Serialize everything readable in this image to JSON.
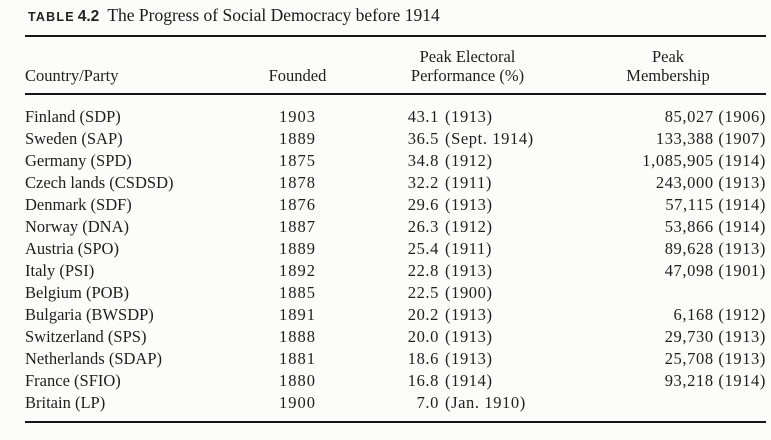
{
  "title": {
    "label": "TABLE",
    "number": "4.2",
    "text": "The Progress of Social Democracy before 1914"
  },
  "colors": {
    "text": "#1e1e1e",
    "rule": "#161616",
    "background": "#fcfcfb"
  },
  "table": {
    "headers": [
      {
        "line1": "Country/Party",
        "line2": ""
      },
      {
        "line1": "Founded",
        "line2": ""
      },
      {
        "line1": "Peak Electoral",
        "line2": "Performance (%)"
      },
      {
        "line1": "Peak",
        "line2": "Membership"
      }
    ],
    "rows": [
      {
        "country": "Finland (SDP)",
        "founded": "1903",
        "electoral_value": "43.1",
        "electoral_date": "(1913)",
        "membership": "85,027 (1906)"
      },
      {
        "country": "Sweden (SAP)",
        "founded": "1889",
        "electoral_value": "36.5",
        "electoral_date": "(Sept. 1914)",
        "membership": "133,388 (1907)"
      },
      {
        "country": "Germany (SPD)",
        "founded": "1875",
        "electoral_value": "34.8",
        "electoral_date": "(1912)",
        "membership": "1,085,905 (1914)"
      },
      {
        "country": "Czech lands (CSDSD)",
        "founded": "1878",
        "electoral_value": "32.2",
        "electoral_date": "(1911)",
        "membership": "243,000 (1913)"
      },
      {
        "country": "Denmark (SDF)",
        "founded": "1876",
        "electoral_value": "29.6",
        "electoral_date": "(1913)",
        "membership": "57,115 (1914)"
      },
      {
        "country": "Norway (DNA)",
        "founded": "1887",
        "electoral_value": "26.3",
        "electoral_date": "(1912)",
        "membership": "53,866 (1914)"
      },
      {
        "country": "Austria (SPO)",
        "founded": "1889",
        "electoral_value": "25.4",
        "electoral_date": "(1911)",
        "membership": "89,628 (1913)"
      },
      {
        "country": "Italy (PSI)",
        "founded": "1892",
        "electoral_value": "22.8",
        "electoral_date": "(1913)",
        "membership": "47,098 (1901)"
      },
      {
        "country": "Belgium (POB)",
        "founded": "1885",
        "electoral_value": "22.5",
        "electoral_date": "(1900)",
        "membership": ""
      },
      {
        "country": "Bulgaria (BWSDP)",
        "founded": "1891",
        "electoral_value": "20.2",
        "electoral_date": "(1913)",
        "membership": "6,168 (1912)"
      },
      {
        "country": "Switzerland (SPS)",
        "founded": "1888",
        "electoral_value": "20.0",
        "electoral_date": "(1913)",
        "membership": "29,730 (1913)"
      },
      {
        "country": "Netherlands (SDAP)",
        "founded": "1881",
        "electoral_value": "18.6",
        "electoral_date": "(1913)",
        "membership": "25,708 (1913)"
      },
      {
        "country": "France (SFIO)",
        "founded": "1880",
        "electoral_value": "16.8",
        "electoral_date": "(1914)",
        "membership": "93,218 (1914)"
      },
      {
        "country": "Britain (LP)",
        "founded": "1900",
        "electoral_value": "7.0",
        "electoral_date": "(Jan. 1910)",
        "membership": ""
      }
    ]
  }
}
